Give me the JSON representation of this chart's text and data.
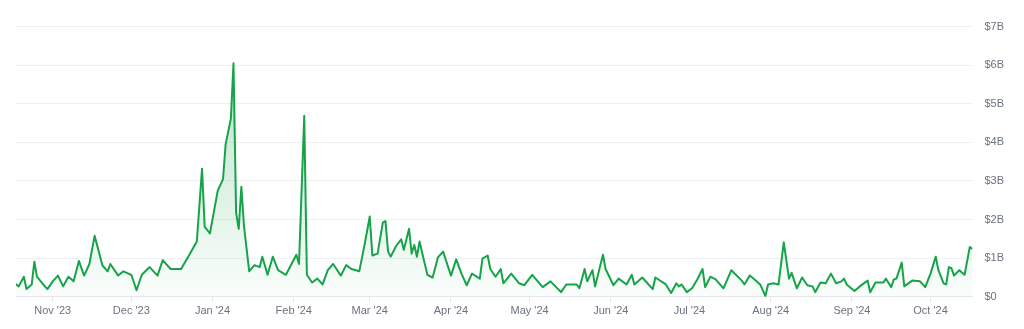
{
  "chart_data": {
    "type": "area",
    "xlim": [
      "2023-10-18",
      "2024-10-17"
    ],
    "xticks": [
      {
        "value": "2023-11-01",
        "label": "Nov '23"
      },
      {
        "value": "2023-12-01",
        "label": "Dec '23"
      },
      {
        "value": "2024-01-01",
        "label": "Jan '24"
      },
      {
        "value": "2024-02-01",
        "label": "Feb '24"
      },
      {
        "value": "2024-03-01",
        "label": "Mar '24"
      },
      {
        "value": "2024-04-01",
        "label": "Apr '24"
      },
      {
        "value": "2024-05-01",
        "label": "May '24"
      },
      {
        "value": "2024-06-01",
        "label": "Jun '24"
      },
      {
        "value": "2024-07-01",
        "label": "Jul '24"
      },
      {
        "value": "2024-08-01",
        "label": "Aug '24"
      },
      {
        "value": "2024-09-01",
        "label": "Sep '24"
      },
      {
        "value": "2024-10-01",
        "label": "Oct '24"
      }
    ],
    "ylim": [
      0,
      7
    ],
    "yticks": [
      {
        "value": 0,
        "label": "$0"
      },
      {
        "value": 1,
        "label": "$1B"
      },
      {
        "value": 2,
        "label": "$2B"
      },
      {
        "value": 3,
        "label": "$3B"
      },
      {
        "value": 4,
        "label": "$4B"
      },
      {
        "value": 5,
        "label": "$5B"
      },
      {
        "value": 6,
        "label": "$6B"
      },
      {
        "value": 7,
        "label": "$7B"
      }
    ],
    "grid": "y",
    "marker": "none",
    "line_style": "solid",
    "x": [
      "2023-10-18",
      "2023-10-19",
      "2023-10-21",
      "2023-10-22",
      "2023-10-24",
      "2023-10-25",
      "2023-10-26",
      "2023-10-29",
      "2023-10-30",
      "2023-11-01",
      "2023-11-03",
      "2023-11-05",
      "2023-11-07",
      "2023-11-09",
      "2023-11-11",
      "2023-11-13",
      "2023-11-15",
      "2023-11-17",
      "2023-11-20",
      "2023-11-22",
      "2023-11-23",
      "2023-11-26",
      "2023-11-28",
      "2023-12-01",
      "2023-12-03",
      "2023-12-05",
      "2023-12-08",
      "2023-12-11",
      "2023-12-13",
      "2023-12-16",
      "2023-12-20",
      "2023-12-23",
      "2023-12-26",
      "2023-12-28",
      "2023-12-29",
      "2023-12-31",
      "2024-01-03",
      "2024-01-05",
      "2024-01-06",
      "2024-01-08",
      "2024-01-09",
      "2024-01-10",
      "2024-01-11",
      "2024-01-12",
      "2024-01-13",
      "2024-01-15",
      "2024-01-17",
      "2024-01-19",
      "2024-01-20",
      "2024-01-22",
      "2024-01-24",
      "2024-01-26",
      "2024-01-29",
      "2024-02-02",
      "2024-02-03",
      "2024-02-05",
      "2024-02-06",
      "2024-02-08",
      "2024-02-10",
      "2024-02-12",
      "2024-02-14",
      "2024-02-16",
      "2024-02-19",
      "2024-02-21",
      "2024-02-23",
      "2024-02-26",
      "2024-02-28",
      "2024-03-01",
      "2024-03-02",
      "2024-03-04",
      "2024-03-06",
      "2024-03-07",
      "2024-03-08",
      "2024-03-09",
      "2024-03-11",
      "2024-03-13",
      "2024-03-14",
      "2024-03-16",
      "2024-03-17",
      "2024-03-18",
      "2024-03-19",
      "2024-03-20",
      "2024-03-21",
      "2024-03-23",
      "2024-03-25",
      "2024-03-27",
      "2024-03-29",
      "2024-04-01",
      "2024-04-03",
      "2024-04-05",
      "2024-04-07",
      "2024-04-09",
      "2024-04-12",
      "2024-04-13",
      "2024-04-15",
      "2024-04-16",
      "2024-04-18",
      "2024-04-20",
      "2024-04-21",
      "2024-04-24",
      "2024-04-27",
      "2024-04-29",
      "2024-05-02",
      "2024-05-06",
      "2024-05-09",
      "2024-05-13",
      "2024-05-15",
      "2024-05-19",
      "2024-05-20",
      "2024-05-22",
      "2024-05-23",
      "2024-05-25",
      "2024-05-26",
      "2024-05-29",
      "2024-05-30",
      "2024-06-02",
      "2024-06-04",
      "2024-06-07",
      "2024-06-09",
      "2024-06-10",
      "2024-06-13",
      "2024-06-17",
      "2024-06-18",
      "2024-06-22",
      "2024-06-24",
      "2024-06-26",
      "2024-06-27",
      "2024-06-28",
      "2024-06-30",
      "2024-07-02",
      "2024-07-04",
      "2024-07-06",
      "2024-07-07",
      "2024-07-09",
      "2024-07-11",
      "2024-07-14",
      "2024-07-17",
      "2024-07-21",
      "2024-07-22",
      "2024-07-24",
      "2024-07-25",
      "2024-07-28",
      "2024-07-30",
      "2024-07-31",
      "2024-08-02",
      "2024-08-04",
      "2024-08-06",
      "2024-08-08",
      "2024-08-09",
      "2024-08-11",
      "2024-08-13",
      "2024-08-15",
      "2024-08-17",
      "2024-08-18",
      "2024-08-20",
      "2024-08-22",
      "2024-08-24",
      "2024-08-26",
      "2024-08-28",
      "2024-08-29",
      "2024-08-30",
      "2024-09-02",
      "2024-09-04",
      "2024-09-07",
      "2024-09-08",
      "2024-09-10",
      "2024-09-13",
      "2024-09-14",
      "2024-09-16",
      "2024-09-17",
      "2024-09-18",
      "2024-09-20",
      "2024-09-21",
      "2024-09-24",
      "2024-09-27",
      "2024-09-29",
      "2024-10-01",
      "2024-10-03",
      "2024-10-04",
      "2024-10-06",
      "2024-10-07",
      "2024-10-08",
      "2024-10-09",
      "2024-10-10",
      "2024-10-12",
      "2024-10-14",
      "2024-10-16",
      "2024-10-17"
    ],
    "series": [
      {
        "color": "#16a34a",
        "values": [
          0.33,
          0.27,
          0.52,
          0.2,
          0.32,
          0.91,
          0.52,
          0.27,
          0.2,
          0.4,
          0.55,
          0.27,
          0.52,
          0.4,
          0.93,
          0.55,
          0.85,
          1.58,
          0.81,
          0.66,
          0.85,
          0.55,
          0.66,
          0.57,
          0.17,
          0.57,
          0.77,
          0.55,
          0.95,
          0.72,
          0.72,
          1.07,
          1.43,
          3.32,
          1.82,
          1.64,
          2.75,
          3.05,
          3.95,
          4.62,
          6.05,
          2.18,
          1.76,
          2.85,
          1.84,
          0.66,
          0.82,
          0.77,
          1.04,
          0.57,
          1.04,
          0.69,
          0.57,
          1.09,
          0.85,
          4.69,
          0.57,
          0.37,
          0.47,
          0.32,
          0.69,
          0.85,
          0.55,
          0.82,
          0.72,
          0.66,
          1.34,
          2.08,
          1.07,
          1.12,
          1.93,
          1.96,
          1.17,
          1.04,
          1.31,
          1.49,
          1.22,
          1.76,
          1.12,
          1.34,
          1.04,
          1.43,
          1.14,
          0.57,
          0.5,
          1.02,
          1.17,
          0.55,
          0.97,
          0.6,
          0.3,
          0.6,
          0.47,
          0.99,
          1.07,
          0.72,
          0.52,
          0.72,
          0.35,
          0.6,
          0.35,
          0.3,
          0.57,
          0.25,
          0.4,
          0.12,
          0.32,
          0.32,
          0.22,
          0.72,
          0.4,
          0.69,
          0.27,
          1.09,
          0.72,
          0.3,
          0.47,
          0.32,
          0.57,
          0.32,
          0.5,
          0.2,
          0.5,
          0.32,
          0.1,
          0.35,
          0.27,
          0.32,
          0.12,
          0.22,
          0.45,
          0.72,
          0.25,
          0.52,
          0.45,
          0.22,
          0.69,
          0.42,
          0.32,
          0.55,
          0.5,
          0.32,
          0.02,
          0.32,
          0.35,
          0.32,
          1.41,
          0.47,
          0.62,
          0.22,
          0.5,
          0.3,
          0.27,
          0.12,
          0.37,
          0.35,
          0.6,
          0.35,
          0.4,
          0.47,
          0.32,
          0.15,
          0.27,
          0.42,
          0.12,
          0.37,
          0.37,
          0.47,
          0.25,
          0.45,
          0.47,
          0.89,
          0.27,
          0.42,
          0.4,
          0.25,
          0.6,
          1.04,
          0.69,
          0.35,
          0.32,
          0.77,
          0.74,
          0.55,
          0.69,
          0.57,
          1.29,
          1.24
        ]
      }
    ]
  }
}
